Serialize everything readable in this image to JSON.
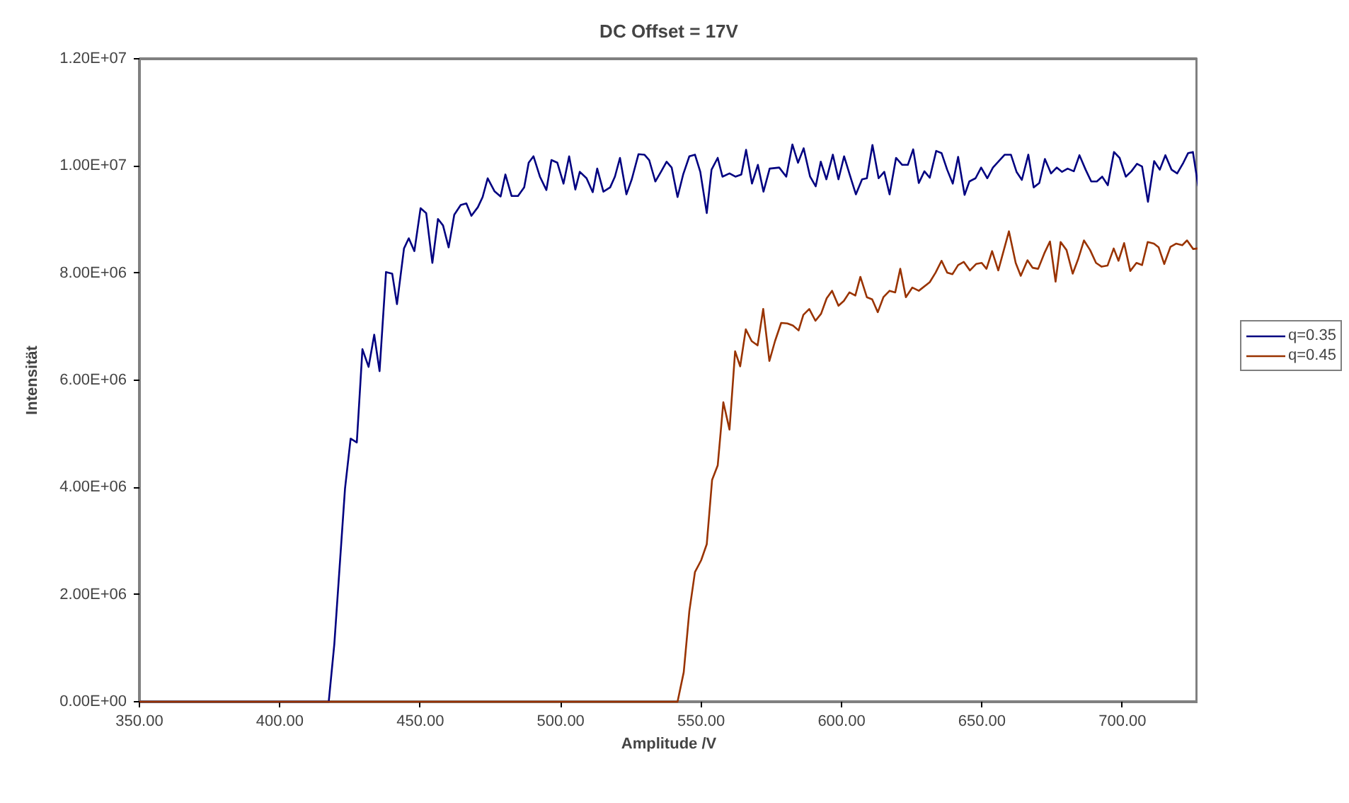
{
  "chart_data": {
    "type": "line",
    "title": "DC Offset = 17V",
    "xlabel": "Amplitude /V",
    "ylabel": "Intensität",
    "xlim": [
      350,
      727
    ],
    "ylim": [
      0,
      12000000
    ],
    "xticks": [
      {
        "value": 350,
        "label": "350.00"
      },
      {
        "value": 400,
        "label": "400.00"
      },
      {
        "value": 450,
        "label": "450.00"
      },
      {
        "value": 500,
        "label": "500.00"
      },
      {
        "value": 550,
        "label": "550.00"
      },
      {
        "value": 600,
        "label": "600.00"
      },
      {
        "value": 650,
        "label": "650.00"
      },
      {
        "value": 700,
        "label": "700.00"
      }
    ],
    "yticks": [
      {
        "value": 0,
        "label": "0.00E+00"
      },
      {
        "value": 2000000,
        "label": "2.00E+06"
      },
      {
        "value": 4000000,
        "label": "4.00E+06"
      },
      {
        "value": 6000000,
        "label": "6.00E+06"
      },
      {
        "value": 8000000,
        "label": "8.00E+06"
      },
      {
        "value": 10000000,
        "label": "1.00E+07"
      },
      {
        "value": 12000000,
        "label": "1.20E+07"
      }
    ],
    "grid": false,
    "legend": "right",
    "marker": "none",
    "line_style": "solid",
    "series": [
      {
        "name": "q=0.35",
        "color": "#000080",
        "x": [
          350,
          417.4,
          419.4,
          423.2,
          425.2,
          427.4,
          429.4,
          431.6,
          433.6,
          435.5,
          437.8,
          440,
          441.7,
          444.2,
          445.9,
          447.9,
          450.1,
          452.1,
          454.3,
          456.3,
          458.1,
          460.1,
          462.1,
          464.4,
          466.4,
          468.2,
          470.5,
          472.2,
          474,
          476.4,
          478.6,
          480.3,
          482.5,
          484.8,
          487,
          488.6,
          490.3,
          492.6,
          494.9,
          496.7,
          498.8,
          501,
          503,
          505.2,
          506.8,
          509.2,
          511.4,
          513,
          515.2,
          517.6,
          519.3,
          521.1,
          523.4,
          525.3,
          527.7,
          529.8,
          531.5,
          533.7,
          535.7,
          537.7,
          539.5,
          541.6,
          543.6,
          545.8,
          547.8,
          549.7,
          552,
          553.7,
          555.9,
          557.6,
          560.1,
          562.2,
          564.3,
          566,
          568.1,
          570.2,
          572.2,
          574.4,
          577.8,
          580.3,
          582.5,
          584.5,
          586.5,
          588.8,
          590.8,
          592.6,
          594.6,
          596.9,
          598.9,
          600.9,
          603,
          605.1,
          607.3,
          609,
          611,
          613.2,
          615.2,
          617.1,
          619.4,
          621.6,
          623.6,
          625.5,
          627.5,
          629.5,
          631.4,
          633.7,
          635.6,
          637.6,
          639.6,
          641.5,
          643.8,
          645.5,
          647.7,
          649.7,
          651.9,
          653.9,
          658.1,
          660.3,
          662.3,
          664.2,
          666.5,
          668.4,
          670.4,
          672.4,
          674.6,
          676.6,
          678.5,
          680.5,
          682.7,
          684.7,
          686.9,
          688.9,
          690.9,
          692.8,
          694.8,
          697,
          699,
          701.2,
          703.2,
          705.2,
          707,
          709.1,
          711.3,
          713.3,
          715.3,
          717.5,
          719.5,
          721.7,
          723.4,
          725.1,
          727
        ],
        "values": [
          0,
          0,
          1080000.0,
          3980000.0,
          4910000.0,
          4840000.0,
          6580000.0,
          6250000.0,
          6850000.0,
          6170000.0,
          8020000.0,
          7990000.0,
          7420000.0,
          8460000.0,
          8650000.0,
          8410000.0,
          9210000.0,
          9120000.0,
          8190000.0,
          9010000.0,
          8890000.0,
          8480000.0,
          9090000.0,
          9270000.0,
          9300000.0,
          9070000.0,
          9230000.0,
          9420000.0,
          9770000.0,
          9530000.0,
          9430000.0,
          9840000.0,
          9440000.0,
          9440000.0,
          9600000.0,
          10060000.0,
          10180000.0,
          9800000.0,
          9550000.0,
          10110000.0,
          10060000.0,
          9670000.0,
          10180000.0,
          9560000.0,
          9890000.0,
          9770000.0,
          9510000.0,
          9950000.0,
          9520000.0,
          9600000.0,
          9800000.0,
          10150000.0,
          9470000.0,
          9750000.0,
          10220000.0,
          10210000.0,
          10110000.0,
          9710000.0,
          9890000.0,
          10080000.0,
          9970000.0,
          9420000.0,
          9840000.0,
          10180000.0,
          10210000.0,
          9890000.0,
          9120000.0,
          9930000.0,
          10150000.0,
          9800000.0,
          9860000.0,
          9800000.0,
          9840000.0,
          10300000.0,
          9670000.0,
          10020000.0,
          9520000.0,
          9950000.0,
          9970000.0,
          9800000.0,
          10400000.0,
          10060000.0,
          10330000.0,
          9800000.0,
          9620000.0,
          10080000.0,
          9750000.0,
          10210000.0,
          9750000.0,
          10180000.0,
          9820000.0,
          9470000.0,
          9750000.0,
          9770000.0,
          10390000.0,
          9770000.0,
          9890000.0,
          9470000.0,
          10150000.0,
          10020000.0,
          10020000.0,
          10310000.0,
          9680000.0,
          9900000.0,
          9780000.0,
          10280000.0,
          10240000.0,
          9930000.0,
          9670000.0,
          10170000.0,
          9460000.0,
          9710000.0,
          9770000.0,
          9970000.0,
          9770000.0,
          9970000.0,
          10210000.0,
          10210000.0,
          9890000.0,
          9740000.0,
          10210000.0,
          9600000.0,
          9680000.0,
          10130000.0,
          9860000.0,
          9970000.0,
          9890000.0,
          9950000.0,
          9900000.0,
          10200000.0,
          9930000.0,
          9710000.0,
          9710000.0,
          9800000.0,
          9640000.0,
          10260000.0,
          10150000.0,
          9800000.0,
          9900000.0,
          10040000.0,
          9990000.0,
          9330000.0,
          10090000.0,
          9930000.0,
          10200000.0,
          9930000.0,
          9860000.0,
          10060000.0,
          10240000.0,
          10260000.0,
          9620000.0
        ]
      },
      {
        "name": "q=0.45",
        "color": "#993300",
        "x": [
          350,
          541.6,
          543.8,
          545.8,
          547.8,
          550,
          552,
          553.9,
          555.9,
          557.9,
          560.1,
          562.1,
          563.9,
          565.9,
          568,
          570.1,
          572.1,
          574.3,
          576.3,
          578.5,
          580.7,
          582.7,
          584.7,
          586.4,
          588.5,
          590.7,
          592.7,
          594.7,
          596.6,
          598.9,
          600.8,
          602.8,
          604.9,
          606.7,
          609,
          610.9,
          612.9,
          614.9,
          617.1,
          619.1,
          620.9,
          622.9,
          625.2,
          627.5,
          631.4,
          633.5,
          635.6,
          637.6,
          639.5,
          641.5,
          643.5,
          645.7,
          647.9,
          649.9,
          651.6,
          653.6,
          655.8,
          659.6,
          662,
          663.8,
          666.2,
          668,
          670,
          672.2,
          674.2,
          676.2,
          678,
          680.1,
          682.3,
          684.3,
          686.3,
          688.5,
          690.6,
          692.6,
          694.7,
          696.9,
          698.6,
          700.6,
          702.8,
          705,
          707,
          709,
          711.2,
          712.9,
          714.9,
          717.1,
          719.1,
          721.3,
          723,
          725.2,
          726.9
        ],
        "values": [
          0,
          0,
          550000.0,
          1690000.0,
          2420000.0,
          2640000.0,
          2940000.0,
          4140000.0,
          4410000.0,
          5590000.0,
          5080000.0,
          6540000.0,
          6260000.0,
          6950000.0,
          6730000.0,
          6650000.0,
          7330000.0,
          6360000.0,
          6730000.0,
          7070000.0,
          7060000.0,
          7020000.0,
          6930000.0,
          7220000.0,
          7330000.0,
          7110000.0,
          7240000.0,
          7530000.0,
          7670000.0,
          7390000.0,
          7480000.0,
          7640000.0,
          7580000.0,
          7930000.0,
          7550000.0,
          7510000.0,
          7270000.0,
          7550000.0,
          7670000.0,
          7640000.0,
          8080000.0,
          7550000.0,
          7730000.0,
          7670000.0,
          7830000.0,
          8010000.0,
          8230000.0,
          8010000.0,
          7980000.0,
          8150000.0,
          8210000.0,
          8050000.0,
          8170000.0,
          8190000.0,
          8080000.0,
          8410000.0,
          8050000.0,
          8780000.0,
          8190000.0,
          7950000.0,
          8240000.0,
          8100000.0,
          8080000.0,
          8370000.0,
          8590000.0,
          7840000.0,
          8580000.0,
          8430000.0,
          7990000.0,
          8270000.0,
          8610000.0,
          8430000.0,
          8190000.0,
          8120000.0,
          8140000.0,
          8460000.0,
          8230000.0,
          8560000.0,
          8040000.0,
          8190000.0,
          8150000.0,
          8580000.0,
          8550000.0,
          8480000.0,
          8170000.0,
          8490000.0,
          8550000.0,
          8520000.0,
          8610000.0,
          8450000.0,
          8460000.0
        ]
      }
    ]
  }
}
